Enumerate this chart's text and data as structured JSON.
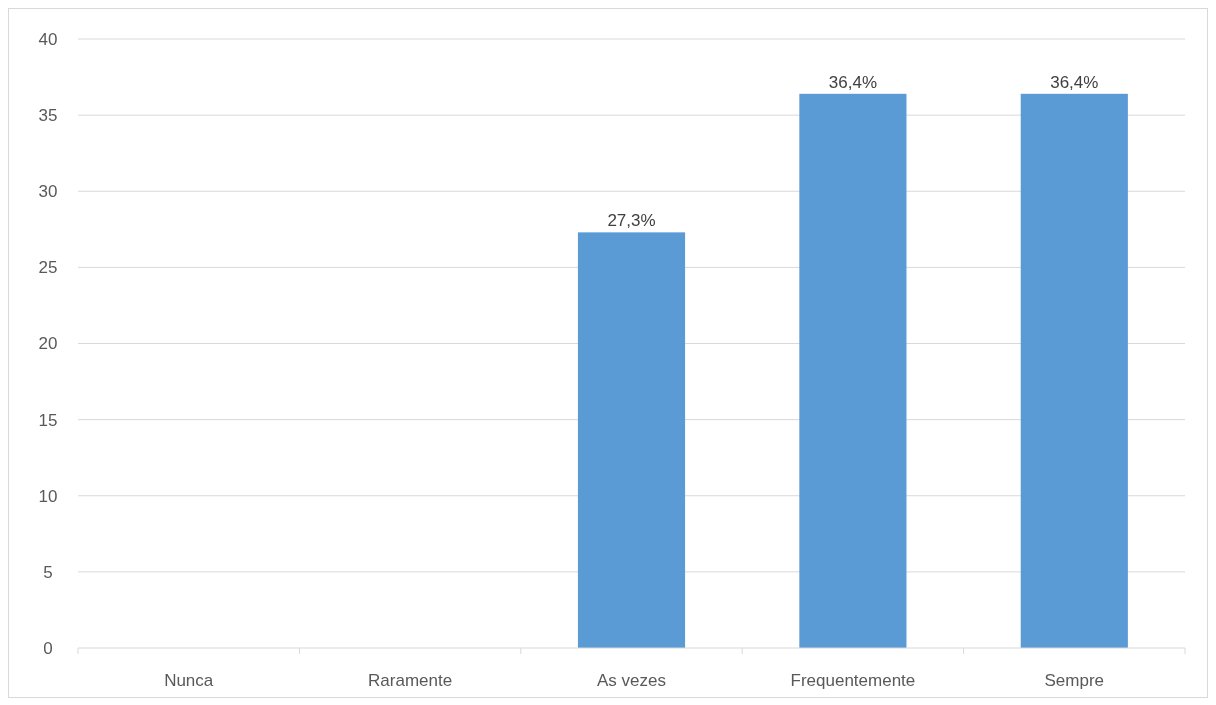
{
  "chart_data": {
    "type": "bar",
    "categories": [
      "Nunca",
      "Raramente",
      "As vezes",
      "Frequentemente",
      "Sempre"
    ],
    "values": [
      0,
      0,
      27.3,
      36.4,
      36.4
    ],
    "value_labels": [
      null,
      null,
      "27,3%",
      "36,4%",
      "36,4%"
    ],
    "color": "#5b9bd5",
    "ylim": [
      0,
      40
    ],
    "yticks": [
      0,
      5,
      10,
      15,
      20,
      25,
      30,
      35,
      40
    ],
    "grid": "y"
  }
}
